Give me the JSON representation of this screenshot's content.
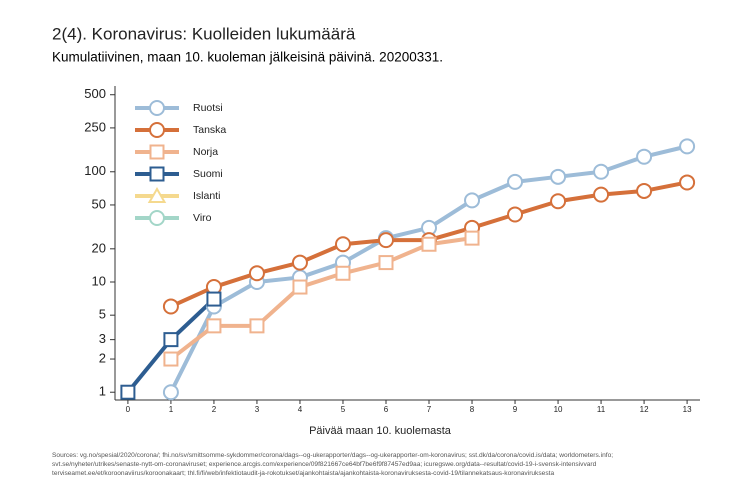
{
  "chart_data": {
    "type": "line",
    "title": "2(4). Koronavirus: Kuolleiden lukumäärä",
    "subtitle": "Kumulatiivinen, maan 10. kuoleman jälkeisinä päivinä. 20200331.",
    "x_label": "Päivää maan 10. kuolemasta",
    "sources": [
      "Sources: vg.no/spesial/2020/corona/; fhi.no/sv/smittsomme-sykdommer/corona/dags--og-ukerapporter/dags--og-ukerapporter-om-koronavirus; sst.dk/da/corona/covid.is/data; worldometers.info;",
      "svt.se/nyheter/utrikes/senaste-nytt-om-coronaviruset; experience.arcgis.com/experience/09f821667ce64bf7be6f9f87457ed9aa; icuregswe.org/data--resultat/covid-19-i-svensk-intensivvard",
      "terviseamet.ee/et/koroonaviirus/koroonakaart; thl.fi/fi/web/infektiotaudit-ja-rokotukset/ajankohtaista/ajankohtaista-koronaviruksesta-covid-19/tilannekatsaus-koronaviruksesta"
    ],
    "x": [
      0,
      1,
      2,
      3,
      4,
      5,
      6,
      7,
      8,
      9,
      10,
      11,
      12,
      13
    ],
    "xlim": [
      -0.3,
      13.3
    ],
    "xticks": [
      0,
      1,
      2,
      3,
      4,
      5,
      6,
      7,
      8,
      9,
      10,
      11,
      12,
      13
    ],
    "ylim": [
      0.85,
      600
    ],
    "yticks": [
      1,
      2,
      3,
      5,
      10,
      20,
      50,
      100,
      250,
      500
    ],
    "log_y": true,
    "legend_position": "top-left",
    "series": [
      {
        "name": "Ruotsi",
        "color": "#9dbcd8",
        "marker": "circle",
        "values": [
          null,
          1,
          6,
          10,
          11,
          15,
          25,
          31,
          55,
          81,
          90,
          100,
          137,
          170
        ]
      },
      {
        "name": "Tanska",
        "color": "#d5703a",
        "marker": "circle",
        "values": [
          null,
          6,
          9,
          12,
          15,
          22,
          24,
          24,
          31,
          41,
          54,
          62,
          67,
          80
        ]
      },
      {
        "name": "Norja",
        "color": "#f0b38e",
        "marker": "square",
        "values": [
          null,
          2,
          4,
          4,
          9,
          12,
          15,
          22,
          25,
          null,
          null,
          null,
          null,
          null
        ]
      },
      {
        "name": "Suomi",
        "color": "#2d5d91",
        "marker": "square",
        "values": [
          1,
          3,
          7,
          null,
          null,
          null,
          null,
          null,
          null,
          null,
          null,
          null,
          null,
          null
        ]
      },
      {
        "name": "Islanti",
        "color": "#f5d98e",
        "marker": "triangle",
        "values": [
          null,
          null,
          null,
          null,
          null,
          null,
          null,
          null,
          null,
          null,
          null,
          null,
          null,
          null
        ]
      },
      {
        "name": "Viro",
        "color": "#a3d6c8",
        "marker": "circle",
        "values": [
          null,
          null,
          null,
          null,
          null,
          null,
          null,
          null,
          null,
          null,
          null,
          null,
          null,
          null
        ]
      }
    ]
  }
}
